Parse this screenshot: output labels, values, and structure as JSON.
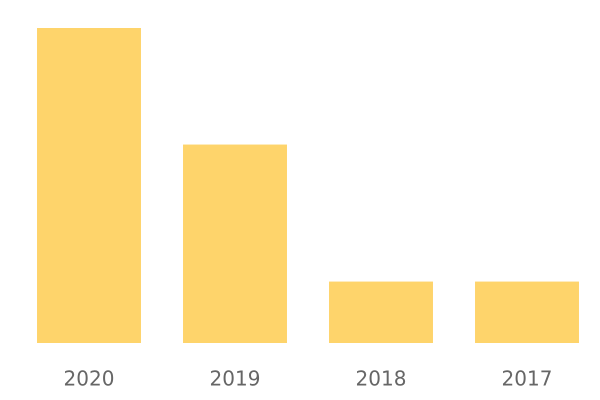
{
  "chart_data": {
    "type": "bar",
    "categories": [
      "2020",
      "2019",
      "2018",
      "2017"
    ],
    "values": [
      100,
      63,
      19.5,
      19.5
    ],
    "color": "#fed46b",
    "ylim": [
      0,
      100
    ]
  }
}
